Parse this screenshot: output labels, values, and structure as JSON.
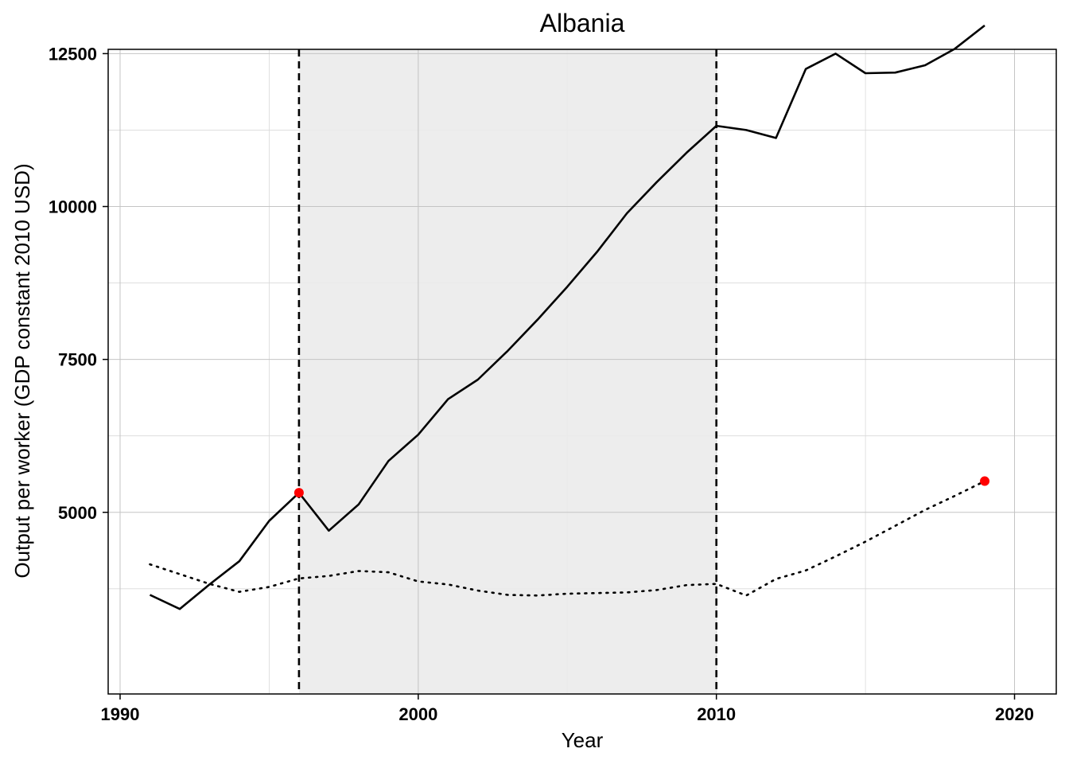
{
  "chart_data": {
    "type": "line",
    "title": "Albania",
    "xlabel": "Year",
    "ylabel": "Output per worker (GDP constant 2010 USD)",
    "xlim": [
      1989.6,
      2021.4
    ],
    "ylim": [
      2030,
      12570
    ],
    "x_ticks": [
      1990,
      2000,
      2010,
      2020
    ],
    "y_ticks": [
      5000,
      7500,
      10000,
      12500
    ],
    "grid": true,
    "shaded_region": {
      "x_start": 1996,
      "x_end": 2010,
      "color": "#ebebeb"
    },
    "vertical_lines": [
      1996,
      2010
    ],
    "colors": {
      "line": "#000000",
      "highlight": "#ff0000",
      "shade": "#ebebeb"
    },
    "series": [
      {
        "style": "solid",
        "x": [
          1991,
          1992,
          1993,
          1994,
          1995,
          1996,
          1997,
          1998,
          1999,
          2000,
          2001,
          2002,
          2003,
          2004,
          2005,
          2006,
          2007,
          2008,
          2009,
          2010,
          2011,
          2012,
          2013,
          2014,
          2015,
          2016,
          2017,
          2018,
          2019
        ],
        "y": [
          3650,
          3420,
          3820,
          4200,
          4860,
          5320,
          4700,
          5130,
          5840,
          6270,
          6850,
          7170,
          7640,
          8150,
          8690,
          9260,
          9890,
          10400,
          10880,
          11320,
          11250,
          11120,
          12250,
          12500,
          12180,
          12190,
          12310,
          12580,
          12960
        ]
      },
      {
        "style": "dotted",
        "x": [
          1991,
          1992,
          1993,
          1994,
          1995,
          1996,
          1997,
          1998,
          1999,
          2000,
          2001,
          2002,
          2003,
          2004,
          2005,
          2006,
          2007,
          2008,
          2009,
          2010,
          2011,
          2012,
          2013,
          2014,
          2015,
          2016,
          2017,
          2018,
          2019
        ],
        "y": [
          4150,
          3990,
          3830,
          3700,
          3780,
          3920,
          3960,
          4040,
          4020,
          3870,
          3820,
          3720,
          3650,
          3640,
          3670,
          3680,
          3690,
          3730,
          3810,
          3830,
          3640,
          3910,
          4050,
          4280,
          4520,
          4780,
          5040,
          5270,
          5510
        ]
      }
    ],
    "highlight_points": [
      {
        "x": 1996,
        "y": 5320
      },
      {
        "x": 2019,
        "y": 5510
      }
    ]
  }
}
